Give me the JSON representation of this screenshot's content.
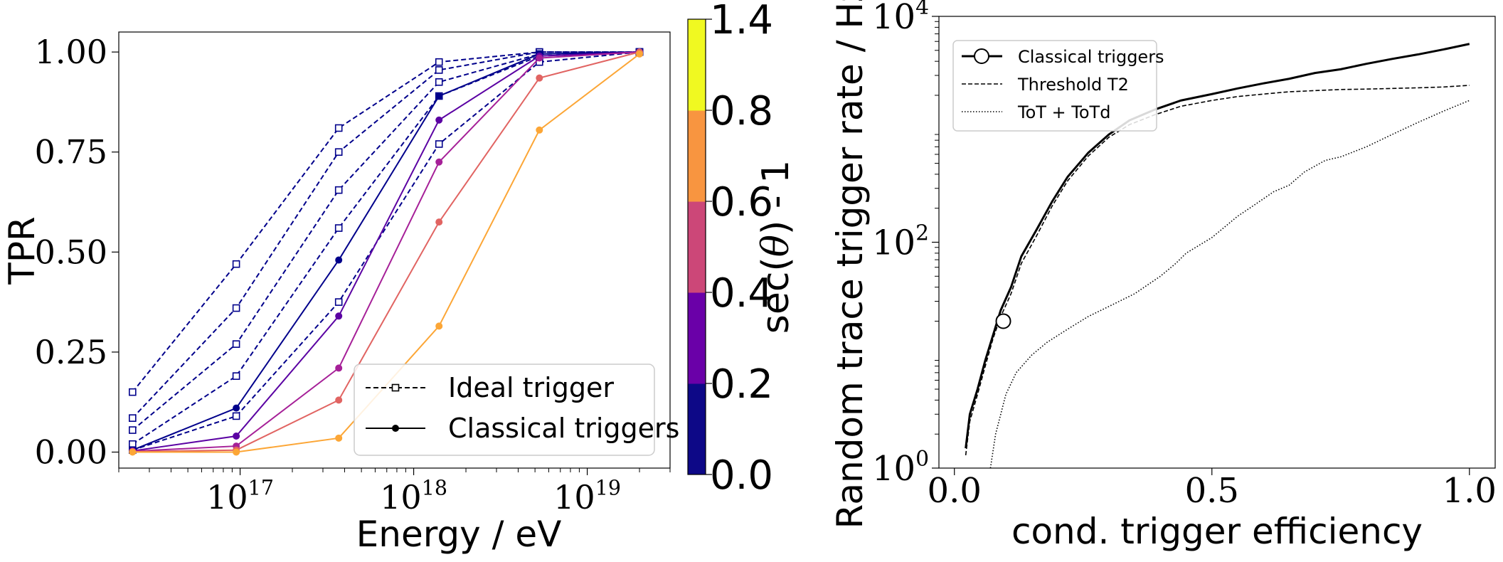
{
  "chart_data": [
    {
      "type": "line",
      "xlabel": "Energy / eV",
      "ylabel": "TPR",
      "xscale": "log",
      "xlim": [
        2e+16,
        3e+19
      ],
      "ylim": [
        -0.04,
        1.05
      ],
      "xticks": [
        {
          "value": 1e+17,
          "base": "10",
          "exp": "17"
        },
        {
          "value": 1e+18,
          "base": "10",
          "exp": "18"
        },
        {
          "value": 1e+19,
          "base": "10",
          "exp": "19"
        }
      ],
      "yticks": [
        "0.00",
        "0.25",
        "0.50",
        "0.75",
        "1.00"
      ],
      "x": [
        2.4e+16,
        9.5e+16,
        3.7e+17,
        1.4e+18,
        5.3e+18,
        2e+19
      ],
      "legend": {
        "location": "lower right",
        "entries": [
          "Ideal trigger",
          "Classical triggers"
        ]
      },
      "colorbar": {
        "label": "sec(θ) - 1",
        "label_parts": [
          "sec(",
          "θ",
          ") - 1"
        ],
        "ticks": [
          "0.0",
          "0.2",
          "0.4",
          "0.6",
          "0.8",
          "1.4"
        ],
        "bins": [
          {
            "from": 0.0,
            "to": 0.2,
            "color": "#0d0887"
          },
          {
            "from": 0.2,
            "to": 0.4,
            "color": "#6a00a8"
          },
          {
            "from": 0.4,
            "to": 0.6,
            "color": "#cc4778"
          },
          {
            "from": 0.6,
            "to": 0.8,
            "color": "#f89540"
          },
          {
            "from": 0.8,
            "to": 1.4,
            "color": "#f0f921"
          }
        ]
      },
      "ideal_series": [
        {
          "color": "#00008b",
          "values": [
            0.15,
            0.47,
            0.81,
            0.975,
            1.0,
            1.0
          ]
        },
        {
          "color": "#00008b",
          "values": [
            0.085,
            0.36,
            0.75,
            0.955,
            1.0,
            1.0
          ]
        },
        {
          "color": "#00008b",
          "values": [
            0.055,
            0.27,
            0.655,
            0.925,
            0.995,
            1.0
          ]
        },
        {
          "color": "#00008b",
          "values": [
            0.02,
            0.19,
            0.56,
            0.89,
            0.99,
            1.0
          ]
        },
        {
          "color": "#00008b",
          "values": [
            0.005,
            0.09,
            0.375,
            0.77,
            0.975,
            1.0
          ]
        }
      ],
      "classical_series": [
        {
          "color": "#00008b",
          "values": [
            0.005,
            0.11,
            0.48,
            0.89,
            0.995,
            1.0
          ]
        },
        {
          "color": "#5b02a3",
          "values": [
            0.003,
            0.04,
            0.34,
            0.83,
            0.99,
            1.0
          ]
        },
        {
          "color": "#a62098",
          "values": [
            0.002,
            0.015,
            0.21,
            0.725,
            0.985,
            1.0
          ]
        },
        {
          "color": "#e16462",
          "values": [
            0.001,
            0.005,
            0.13,
            0.575,
            0.935,
            1.0
          ]
        },
        {
          "color": "#fca636",
          "values": [
            0.0,
            0.0,
            0.035,
            0.315,
            0.805,
            0.995
          ]
        }
      ]
    },
    {
      "type": "line",
      "xlabel": "cond. trigger efficiency",
      "ylabel": "Random trace trigger rate / Hz",
      "yscale": "log",
      "xlim": [
        -0.03,
        1.05
      ],
      "ylim": [
        1,
        10000
      ],
      "xticks": [
        "0.0",
        "0.5",
        "1.0"
      ],
      "yticks": [
        {
          "value": 1,
          "base": "10",
          "exp": "0"
        },
        {
          "value": 100,
          "base": "10",
          "exp": "2"
        },
        {
          "value": 10000,
          "base": "10",
          "exp": "4"
        }
      ],
      "legend": {
        "location": "upper left",
        "entries": [
          "Classical triggers",
          "Threshold T2",
          "ToT + ToTd"
        ]
      },
      "marker_point": {
        "x": 0.095,
        "y": 20
      },
      "series": [
        {
          "name": "Classical triggers",
          "style": "solid",
          "x": [
            0.022,
            0.03,
            0.045,
            0.06,
            0.075,
            0.09,
            0.11,
            0.13,
            0.16,
            0.19,
            0.22,
            0.26,
            0.3,
            0.34,
            0.39,
            0.44,
            0.5,
            0.55,
            0.6,
            0.65,
            0.7,
            0.75,
            0.8,
            0.85,
            0.9,
            0.95,
            1.0
          ],
          "y": [
            1.5,
            3,
            5,
            9,
            15,
            25,
            40,
            75,
            130,
            230,
            380,
            620,
            900,
            1200,
            1500,
            1800,
            2050,
            2300,
            2550,
            2800,
            3150,
            3400,
            3800,
            4200,
            4600,
            5100,
            5700
          ]
        },
        {
          "name": "Threshold T2",
          "style": "dashed",
          "x": [
            0.022,
            0.03,
            0.045,
            0.06,
            0.075,
            0.09,
            0.11,
            0.13,
            0.16,
            0.19,
            0.22,
            0.26,
            0.3,
            0.34,
            0.39,
            0.44,
            0.5,
            0.55,
            0.6,
            0.65,
            0.7,
            0.75,
            0.8,
            0.85,
            0.9,
            0.95,
            1.0
          ],
          "y": [
            1.3,
            2.6,
            4.5,
            8,
            14,
            22,
            35,
            65,
            115,
            210,
            350,
            580,
            850,
            1100,
            1350,
            1600,
            1800,
            1950,
            2050,
            2150,
            2200,
            2250,
            2270,
            2300,
            2330,
            2370,
            2450
          ]
        },
        {
          "name": "ToT + ToTd",
          "style": "dotted",
          "x": [
            0.07,
            0.08,
            0.09,
            0.1,
            0.12,
            0.15,
            0.18,
            0.22,
            0.26,
            0.3,
            0.35,
            0.4,
            0.43,
            0.45,
            0.5,
            0.55,
            0.58,
            0.62,
            0.65,
            0.68,
            0.72,
            0.75,
            0.8,
            0.85,
            0.9,
            0.95,
            1.0
          ],
          "y": [
            1,
            2,
            3,
            4.5,
            7,
            10,
            13,
            17,
            22,
            27,
            35,
            50,
            65,
            80,
            110,
            170,
            210,
            280,
            320,
            420,
            530,
            570,
            700,
            900,
            1150,
            1450,
            1800
          ]
        }
      ]
    }
  ]
}
